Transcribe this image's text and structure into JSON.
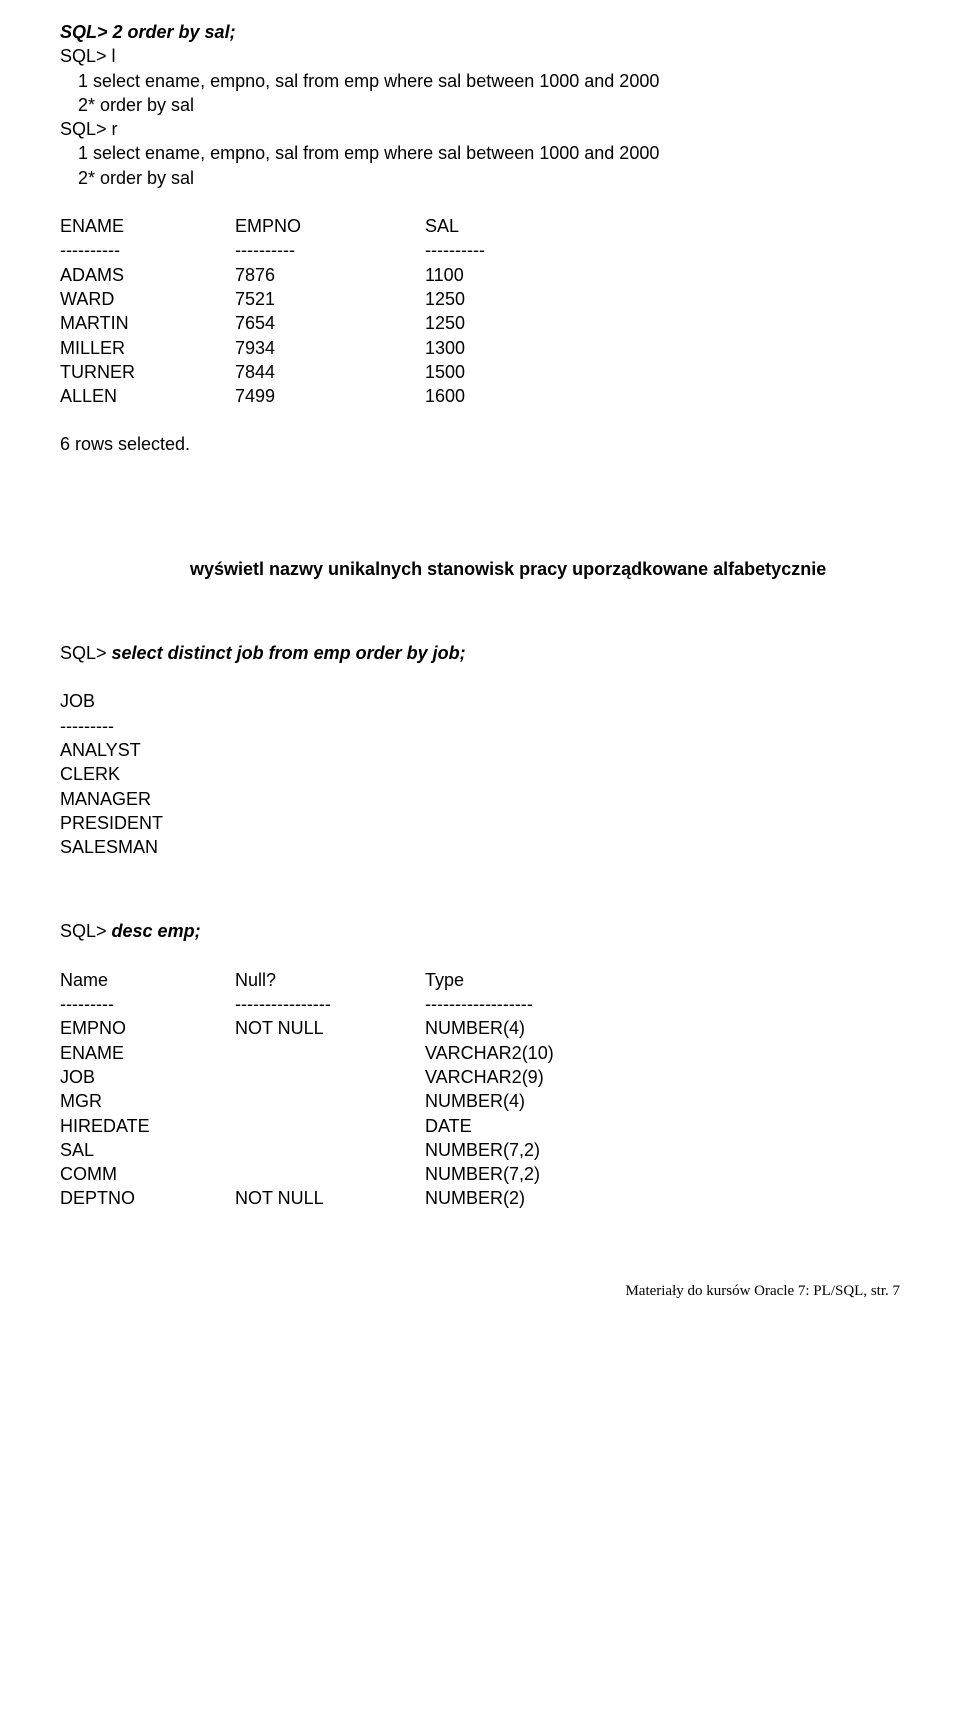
{
  "line1": "SQL> 2 order by sal;",
  "line2": "SQL> l",
  "line3": "1  select ename, empno, sal from emp where sal between 1000 and  2000",
  "line4": "2* order by sal",
  "line5": "SQL> r",
  "line6": "1  select ename, empno, sal from emp where sal between 1000 and  2000",
  "line7": "2* order by sal",
  "result1": {
    "header": {
      "c1": "ENAME",
      "c2": "EMPNO",
      "c3": "SAL"
    },
    "dash": {
      "c1": "----------",
      "c2": "----------",
      "c3": "----------"
    },
    "rows": [
      {
        "c1": "ADAMS",
        "c2": "7876",
        "c3": "1100"
      },
      {
        "c1": "WARD",
        "c2": "7521",
        "c3": "1250"
      },
      {
        "c1": "MARTIN",
        "c2": "7654",
        "c3": "1250"
      },
      {
        "c1": "MILLER",
        "c2": "7934",
        "c3": "1300"
      },
      {
        "c1": "TURNER",
        "c2": "7844",
        "c3": "1500"
      },
      {
        "c1": "ALLEN",
        "c2": "7499",
        "c3": "1600"
      }
    ]
  },
  "rowsSelected": "6 rows selected.",
  "taskText": "wyświetl nazwy unikalnych stanowisk pracy uporządkowane alfabetycznie",
  "query2": "SQL> select distinct job from emp order by job;",
  "jobHeader": "JOB",
  "jobDash": "---------",
  "jobs": [
    "ANALYST",
    "CLERK",
    "MANAGER",
    "PRESIDENT",
    "SALESMAN"
  ],
  "query3": "SQL> desc emp;",
  "desc": {
    "header": {
      "c1": "Name",
      "c2": "Null?",
      "c3": "Type"
    },
    "dash": {
      "c1": "---------",
      "c2": "----------------",
      "c3": "------------------"
    },
    "rows": [
      {
        "c1": "EMPNO",
        "c2": "NOT NULL",
        "c3": "NUMBER(4)"
      },
      {
        "c1": "ENAME",
        "c2": "",
        "c3": "VARCHAR2(10)"
      },
      {
        "c1": "JOB",
        "c2": "",
        "c3": "VARCHAR2(9)"
      },
      {
        "c1": "MGR",
        "c2": "",
        "c3": "NUMBER(4)"
      },
      {
        "c1": "HIREDATE",
        "c2": "",
        "c3": "DATE"
      },
      {
        "c1": "SAL",
        "c2": "",
        "c3": "NUMBER(7,2)"
      },
      {
        "c1": "COMM",
        "c2": "",
        "c3": "NUMBER(7,2)"
      },
      {
        "c1": "DEPTNO",
        "c2": "NOT NULL",
        "c3": "NUMBER(2)"
      }
    ]
  },
  "footer": "Materiały do kursów Oracle 7: PL/SQL, str. 7"
}
